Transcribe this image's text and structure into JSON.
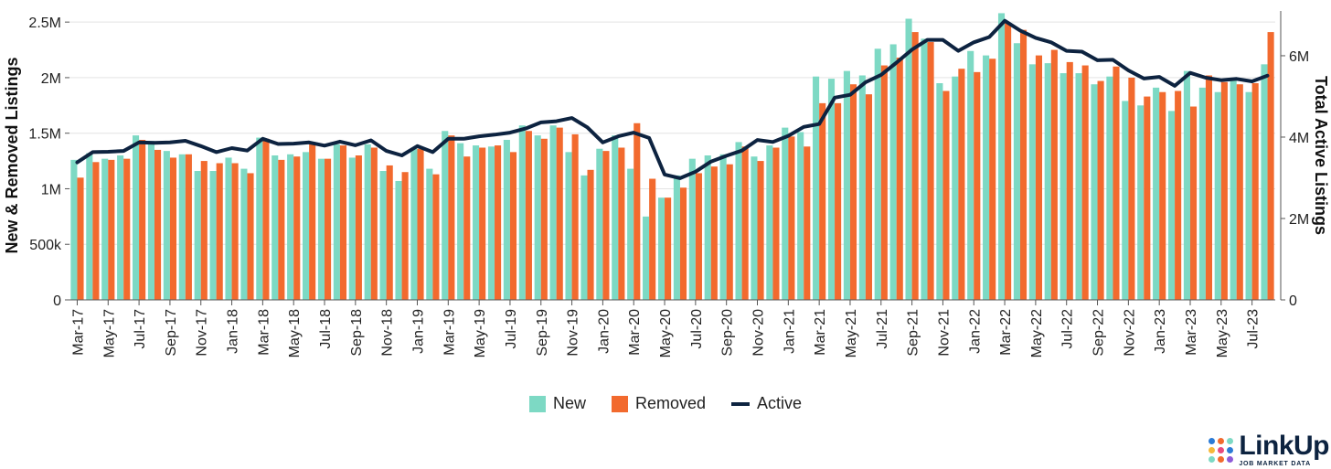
{
  "chart_data": {
    "type": "bar",
    "x": [
      "Mar-17",
      "Apr-17",
      "May-17",
      "Jun-17",
      "Jul-17",
      "Aug-17",
      "Sep-17",
      "Oct-17",
      "Nov-17",
      "Dec-17",
      "Jan-18",
      "Feb-18",
      "Mar-18",
      "Apr-18",
      "May-18",
      "Jun-18",
      "Jul-18",
      "Aug-18",
      "Sep-18",
      "Oct-18",
      "Nov-18",
      "Dec-18",
      "Jan-19",
      "Feb-19",
      "Mar-19",
      "Apr-19",
      "May-19",
      "Jun-19",
      "Jul-19",
      "Aug-19",
      "Sep-19",
      "Oct-19",
      "Nov-19",
      "Dec-19",
      "Jan-20",
      "Feb-20",
      "Mar-20",
      "Apr-20",
      "May-20",
      "Jun-20",
      "Jul-20",
      "Aug-20",
      "Sep-20",
      "Oct-20",
      "Nov-20",
      "Dec-20",
      "Jan-21",
      "Feb-21",
      "Mar-21",
      "Apr-21",
      "May-21",
      "Jun-21",
      "Jul-21",
      "Aug-21",
      "Sep-21",
      "Oct-21",
      "Nov-21",
      "Dec-21",
      "Jan-22",
      "Feb-22",
      "Mar-22",
      "Apr-22",
      "May-22",
      "Jun-22",
      "Jul-22",
      "Aug-22",
      "Sep-22",
      "Oct-22",
      "Nov-22",
      "Dec-22",
      "Jan-23",
      "Feb-23",
      "Mar-23",
      "Apr-23",
      "May-23",
      "Jun-23",
      "Jul-23",
      "Aug-23"
    ],
    "tick_labels": [
      "Mar-17",
      "May-17",
      "Jul-17",
      "Sep-17",
      "Nov-17",
      "Jan-18",
      "Mar-18",
      "May-18",
      "Jul-18",
      "Sep-18",
      "Nov-18",
      "Jan-19",
      "Mar-19",
      "May-19",
      "Jul-19",
      "Sep-19",
      "Nov-19",
      "Jan-20",
      "Mar-20",
      "May-20",
      "Jul-20",
      "Sep-20",
      "Nov-20",
      "Jan-21",
      "Mar-21",
      "May-21",
      "Jul-21",
      "Sep-21",
      "Nov-21",
      "Jan-22",
      "Mar-22",
      "May-22",
      "Jul-22",
      "Sep-22",
      "Nov-22",
      "Jan-23",
      "Mar-23",
      "May-23",
      "Jul-23"
    ],
    "series": [
      {
        "name": "New",
        "axis": "left",
        "color": "#7dd9c4",
        "values": [
          1260000,
          1320000,
          1270000,
          1300000,
          1480000,
          1430000,
          1340000,
          1310000,
          1160000,
          1160000,
          1280000,
          1180000,
          1460000,
          1300000,
          1310000,
          1330000,
          1270000,
          1400000,
          1280000,
          1400000,
          1160000,
          1070000,
          1360000,
          1180000,
          1520000,
          1410000,
          1390000,
          1380000,
          1440000,
          1570000,
          1480000,
          1570000,
          1330000,
          1120000,
          1360000,
          1480000,
          1180000,
          750000,
          920000,
          1120000,
          1270000,
          1300000,
          1310000,
          1420000,
          1290000,
          1390000,
          1550000,
          1510000,
          2010000,
          1990000,
          2060000,
          2020000,
          2260000,
          2300000,
          2530000,
          2350000,
          1950000,
          2010000,
          2240000,
          2200000,
          2580000,
          2310000,
          2120000,
          2130000,
          2040000,
          2040000,
          1940000,
          2010000,
          1790000,
          1750000,
          1910000,
          1700000,
          2060000,
          1910000,
          1870000,
          2000000,
          1870000,
          2120000
        ]
      },
      {
        "name": "Removed",
        "axis": "left",
        "color": "#f26a2e",
        "values": [
          1100000,
          1240000,
          1260000,
          1270000,
          1440000,
          1350000,
          1280000,
          1310000,
          1250000,
          1230000,
          1230000,
          1140000,
          1450000,
          1260000,
          1290000,
          1420000,
          1270000,
          1390000,
          1300000,
          1370000,
          1210000,
          1150000,
          1360000,
          1130000,
          1480000,
          1290000,
          1370000,
          1390000,
          1330000,
          1520000,
          1450000,
          1550000,
          1490000,
          1170000,
          1340000,
          1370000,
          1590000,
          1090000,
          920000,
          1010000,
          1140000,
          1200000,
          1220000,
          1380000,
          1250000,
          1370000,
          1470000,
          1380000,
          1770000,
          1770000,
          1940000,
          1850000,
          2110000,
          2180000,
          2410000,
          2320000,
          1880000,
          2080000,
          2050000,
          2170000,
          2490000,
          2430000,
          2200000,
          2250000,
          2140000,
          2110000,
          1970000,
          2100000,
          2000000,
          1830000,
          1870000,
          1880000,
          1740000,
          2020000,
          1960000,
          1940000,
          1950000,
          2410000
        ]
      },
      {
        "name": "Active",
        "axis": "right",
        "type": "line",
        "color": "#0d2340",
        "values": [
          3380000,
          3630000,
          3640000,
          3660000,
          3870000,
          3860000,
          3870000,
          3910000,
          3780000,
          3630000,
          3730000,
          3670000,
          3960000,
          3830000,
          3840000,
          3870000,
          3790000,
          3890000,
          3800000,
          3920000,
          3660000,
          3550000,
          3780000,
          3630000,
          3960000,
          3960000,
          4020000,
          4060000,
          4110000,
          4210000,
          4360000,
          4390000,
          4470000,
          4240000,
          3870000,
          4020000,
          4110000,
          3980000,
          3080000,
          2990000,
          3150000,
          3400000,
          3540000,
          3670000,
          3930000,
          3880000,
          4030000,
          4250000,
          4320000,
          4970000,
          5040000,
          5350000,
          5530000,
          5830000,
          6150000,
          6390000,
          6390000,
          6120000,
          6330000,
          6460000,
          6860000,
          6620000,
          6440000,
          6330000,
          6120000,
          6100000,
          5890000,
          5900000,
          5640000,
          5440000,
          5480000,
          5260000,
          5580000,
          5460000,
          5400000,
          5430000,
          5370000,
          5510000
        ]
      }
    ],
    "ylabel": "New & Removed Listings",
    "y2label": "Total Active Listings",
    "ylim": [
      0,
      2600000
    ],
    "y2lim": [
      0,
      7100000
    ],
    "yticks": [
      0,
      500000,
      1000000,
      1500000,
      2000000,
      2500000
    ],
    "ytick_labels": [
      "0",
      "500k",
      "1M",
      "1.5M",
      "2M",
      "2.5M"
    ],
    "y2ticks": [
      0,
      2000000,
      4000000,
      6000000
    ],
    "y2tick_labels": [
      "0",
      "2M",
      "4M",
      "6M"
    ],
    "grid": true,
    "legend_placement": "bottom-center"
  },
  "legend": {
    "new": "New",
    "removed": "Removed",
    "active": "Active"
  },
  "logo": {
    "name": "LinkUp",
    "tagline": "JOB MARKET DATA",
    "dot_colors": [
      "#2b7bd6",
      "#f26a2e",
      "#7dd9c4",
      "#f6b93b",
      "#e84a7f",
      "#2b7bd6",
      "#7dd9c4",
      "#f26a2e",
      "#8e5bd8"
    ]
  }
}
